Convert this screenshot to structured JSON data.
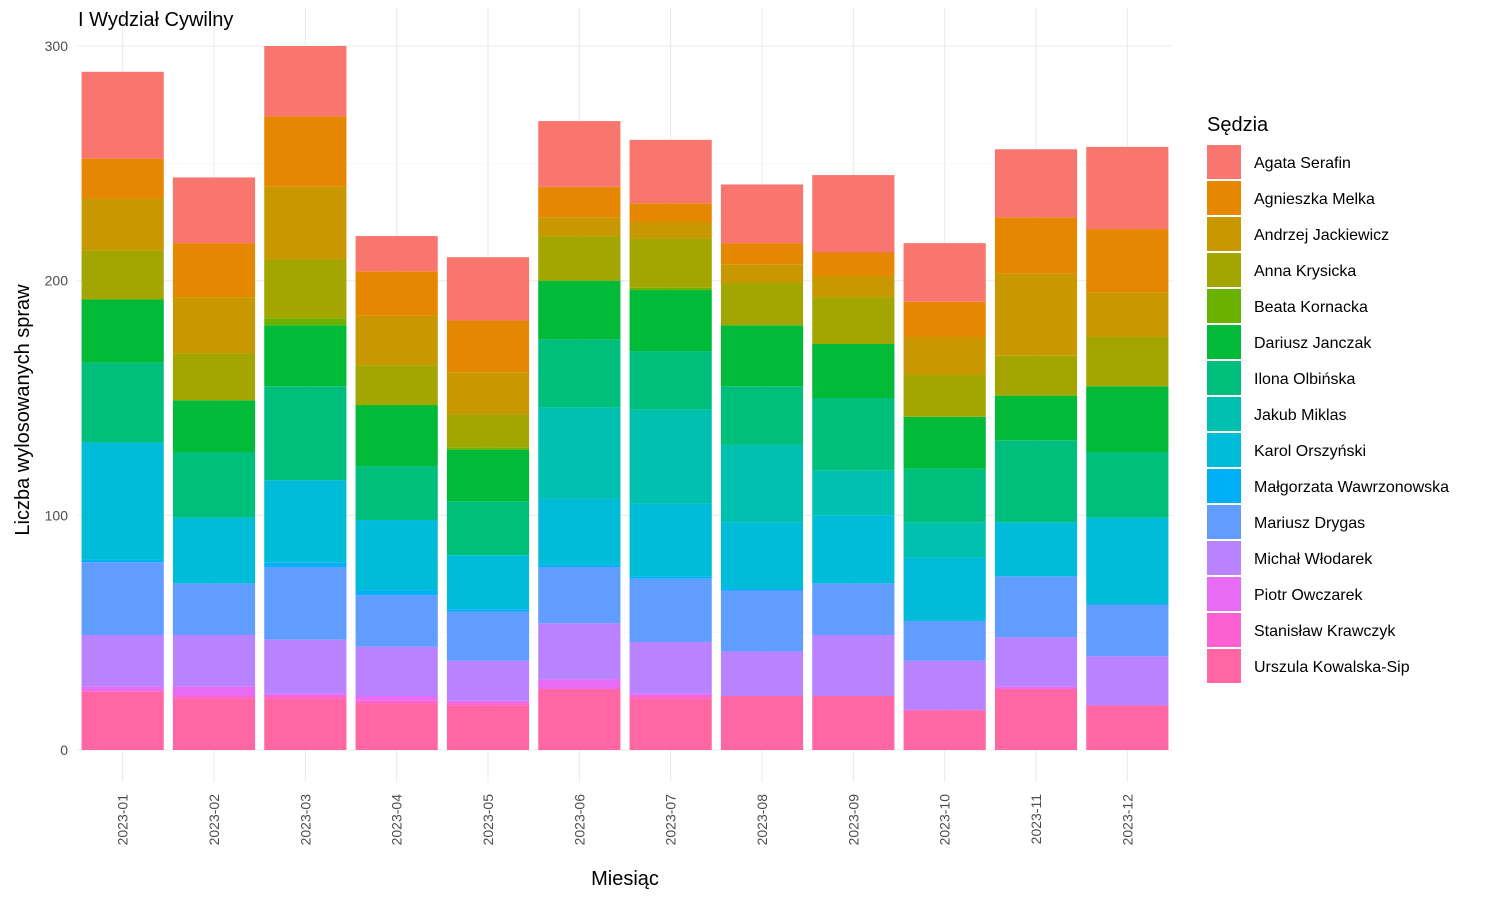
{
  "chart_data": {
    "type": "bar",
    "stacked": true,
    "title": "I Wydział Cywilny",
    "xlabel": "Miesiąc",
    "ylabel": "Liczba wylosowanych spraw",
    "ylim": [
      0,
      300
    ],
    "yticks": [
      0,
      100,
      200,
      300
    ],
    "grid": true,
    "legend": {
      "title": "Sędzia",
      "position": "right"
    },
    "categories": [
      "2023-01",
      "2023-02",
      "2023-03",
      "2023-04",
      "2023-05",
      "2023-06",
      "2023-07",
      "2023-08",
      "2023-09",
      "2023-10",
      "2023-11",
      "2023-12"
    ],
    "series": [
      {
        "name": "Agata Serafin",
        "color": "#F8766D",
        "values": [
          37,
          28,
          30,
          15,
          27,
          28,
          27,
          25,
          33,
          25,
          29,
          35
        ]
      },
      {
        "name": "Agnieszka Melka",
        "color": "#E58700",
        "values": [
          17,
          23,
          30,
          19,
          22,
          13,
          8,
          9,
          10,
          15,
          24,
          27
        ]
      },
      {
        "name": "Andrzej Jackiewicz",
        "color": "#C99800",
        "values": [
          22,
          24,
          31,
          21,
          18,
          8,
          7,
          8,
          9,
          16,
          35,
          19
        ]
      },
      {
        "name": "Anna Krysicka",
        "color": "#A3A500",
        "values": [
          21,
          20,
          25,
          17,
          14,
          19,
          21,
          18,
          20,
          18,
          17,
          21
        ]
      },
      {
        "name": "Beata Kornacka",
        "color": "#6BB100",
        "values": [
          0,
          0,
          3,
          0,
          1,
          0,
          1,
          0,
          0,
          0,
          0,
          0
        ]
      },
      {
        "name": "Dariusz Janczak",
        "color": "#00BA38",
        "values": [
          27,
          22,
          26,
          26,
          22,
          25,
          26,
          26,
          23,
          22,
          19,
          28
        ]
      },
      {
        "name": "Ilona Olbińska",
        "color": "#00BF7D",
        "values": [
          34,
          28,
          40,
          23,
          23,
          29,
          25,
          25,
          31,
          23,
          35,
          28
        ]
      },
      {
        "name": "Jakub Miklas",
        "color": "#00C0AF",
        "values": [
          0,
          0,
          0,
          0,
          0,
          39,
          40,
          33,
          19,
          15,
          0,
          0
        ]
      },
      {
        "name": "Karol Orszyński",
        "color": "#00BCD8",
        "values": [
          50,
          28,
          35,
          30,
          23,
          28,
          31,
          28,
          29,
          27,
          23,
          37
        ]
      },
      {
        "name": "Małgorzata Wawrzonowska",
        "color": "#00B0F6",
        "values": [
          1,
          0,
          2,
          2,
          1,
          1,
          1,
          1,
          0,
          0,
          0,
          0
        ]
      },
      {
        "name": "Mariusz Drygas",
        "color": "#619CFF",
        "values": [
          31,
          22,
          31,
          22,
          21,
          24,
          27,
          26,
          22,
          17,
          26,
          22
        ]
      },
      {
        "name": "Michał Włodarek",
        "color": "#B983FF",
        "values": [
          22,
          22,
          23,
          21,
          17,
          24,
          22,
          19,
          26,
          21,
          21,
          21
        ]
      },
      {
        "name": "Piotr Owczarek",
        "color": "#E76BF3",
        "values": [
          2,
          4,
          1,
          2,
          1,
          4,
          1,
          0,
          0,
          0,
          1,
          0
        ]
      },
      {
        "name": "Stanisław Krawczyk",
        "color": "#FD61D1",
        "values": [
          0,
          1,
          1,
          1,
          1,
          0,
          1,
          0,
          0,
          0,
          0,
          0
        ]
      },
      {
        "name": "Urszula Kowalska-Sip",
        "color": "#FF67A4",
        "values": [
          25,
          22,
          22,
          20,
          19,
          26,
          22,
          23,
          23,
          17,
          26,
          19
        ]
      }
    ]
  }
}
